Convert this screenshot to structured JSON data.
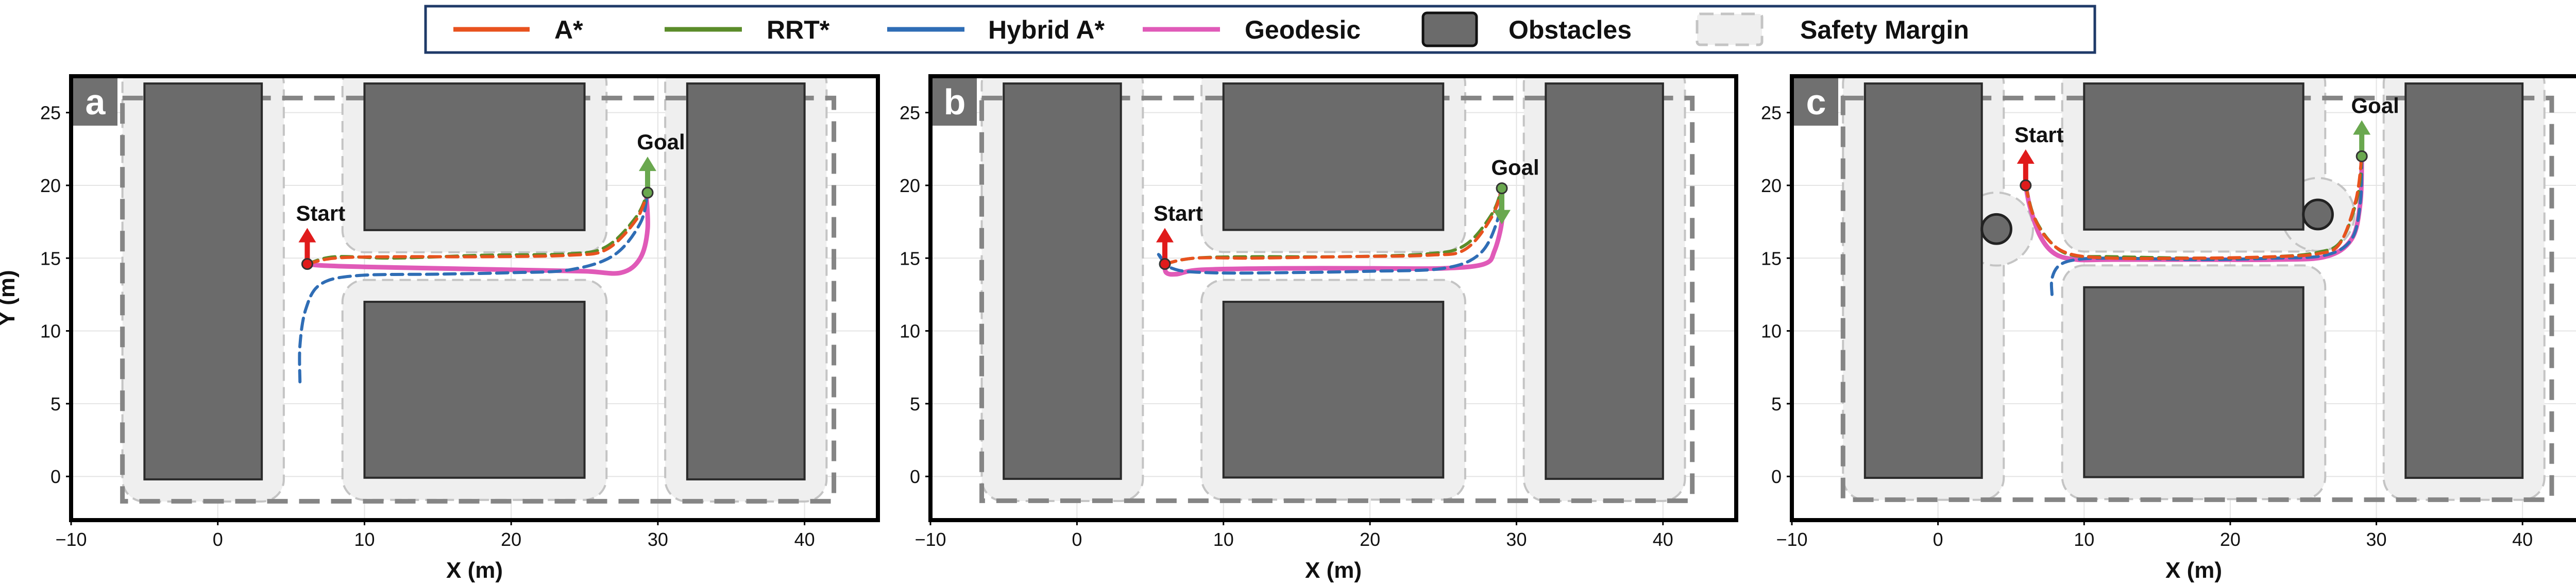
{
  "colors": {
    "astar": "#e8521e",
    "rrt": "#5b8c2a",
    "hybrid": "#2f6db5",
    "geodesic": "#e05ab8",
    "obstacle": "#6b6b6b",
    "margin_fill": "#efefef",
    "margin_line": "#c4c4c4",
    "boundary": "#858585",
    "start": "#e01b1b",
    "goal": "#6aa84f"
  },
  "legend": [
    {
      "label": "A*",
      "key": "astar",
      "kind": "line"
    },
    {
      "label": "RRT*",
      "key": "rrt",
      "kind": "line"
    },
    {
      "label": "Hybrid A*",
      "key": "hybrid",
      "kind": "line"
    },
    {
      "label": "Geodesic",
      "key": "geodesic",
      "kind": "line"
    },
    {
      "label": "Obstacles",
      "key": "obstacle",
      "kind": "box"
    },
    {
      "label": "Safety Margin",
      "key": "margin",
      "kind": "dashedbox"
    }
  ],
  "chart_data": [
    {
      "type": "line",
      "panel": "a",
      "xlabel": "X (m)",
      "ylabel": "Y (m)",
      "xlim": [
        -10,
        45
      ],
      "ylim": [
        -3,
        27.5
      ],
      "xticks": [
        -10,
        0,
        10,
        20,
        30,
        40
      ],
      "yticks": [
        0,
        5,
        10,
        15,
        20,
        25
      ],
      "boundary": {
        "x": [
          -6.5,
          42
        ],
        "y": [
          -1.5,
          26
        ]
      },
      "obstacles": [
        {
          "x": [
            -5,
            3
          ],
          "y": [
            0,
            27
          ]
        },
        {
          "x": [
            10,
            25
          ],
          "y": [
            17,
            27
          ]
        },
        {
          "x": [
            10,
            25
          ],
          "y": [
            0,
            12
          ]
        },
        {
          "x": [
            32,
            40
          ],
          "y": [
            0,
            27
          ]
        }
      ],
      "circle_obstacles": [],
      "start": {
        "label": "Start",
        "x": 6.1,
        "y": 14.6,
        "heading_deg": 90
      },
      "goal": {
        "label": "Goal",
        "x": 29.3,
        "y": 19.5,
        "heading_deg": 90
      },
      "series": [
        {
          "name": "A*",
          "key": "astar",
          "dashed": true,
          "x": [
            6.1,
            8,
            12,
            18,
            24,
            26.5,
            28.5,
            29.3
          ],
          "y": [
            14.6,
            15.0,
            15.1,
            15.1,
            15.2,
            15.6,
            17.6,
            19.5
          ]
        },
        {
          "name": "RRT*",
          "key": "rrt",
          "dashed": true,
          "x": [
            6.1,
            8,
            12,
            18,
            24,
            26.5,
            28.5,
            29.3
          ],
          "y": [
            14.6,
            15.1,
            15.0,
            15.2,
            15.3,
            15.8,
            17.8,
            19.5
          ]
        },
        {
          "name": "Hybrid A*",
          "key": "hybrid",
          "dashed": true,
          "x": [
            5.6,
            5.6,
            6.0,
            7.0,
            9.5,
            15,
            20,
            24,
            27,
            28.8,
            29.3
          ],
          "y": [
            6.5,
            9.0,
            11.5,
            13.2,
            13.8,
            13.9,
            14.0,
            14.2,
            15.2,
            17.4,
            19.5
          ]
        },
        {
          "name": "Geodesic",
          "key": "geodesic",
          "dashed": false,
          "x": [
            6.1,
            7.0,
            10,
            15,
            20,
            25,
            27.5,
            28.8,
            29.3,
            29.2
          ],
          "y": [
            14.6,
            14.5,
            14.4,
            14.3,
            14.2,
            14.1,
            14.0,
            15.0,
            17.0,
            19.5
          ]
        }
      ]
    },
    {
      "type": "line",
      "panel": "b",
      "xlabel": "X (m)",
      "ylabel": "",
      "xlim": [
        -10,
        45
      ],
      "ylim": [
        -3,
        27.5
      ],
      "xticks": [
        -10,
        0,
        10,
        20,
        30,
        40
      ],
      "yticks": [
        0,
        5,
        10,
        15,
        20,
        25
      ],
      "boundary": {
        "x": [
          -6.5,
          42
        ],
        "y": [
          -1.5,
          26
        ]
      },
      "obstacles": [
        {
          "x": [
            -5,
            3
          ],
          "y": [
            0,
            27
          ]
        },
        {
          "x": [
            10,
            25
          ],
          "y": [
            17,
            27
          ]
        },
        {
          "x": [
            10,
            25
          ],
          "y": [
            0,
            12
          ]
        },
        {
          "x": [
            32,
            40
          ],
          "y": [
            0,
            27
          ]
        }
      ],
      "circle_obstacles": [],
      "start": {
        "label": "Start",
        "x": 6.0,
        "y": 14.6,
        "heading_deg": 90
      },
      "goal": {
        "label": "Goal",
        "x": 29.0,
        "y": 19.8,
        "heading_deg": -90
      },
      "series": [
        {
          "name": "A*",
          "key": "astar",
          "dashed": true,
          "x": [
            6.0,
            8,
            12,
            18,
            24,
            26.5,
            28.3,
            29.0
          ],
          "y": [
            14.6,
            15.0,
            15.0,
            15.1,
            15.2,
            15.6,
            17.8,
            19.8
          ]
        },
        {
          "name": "RRT*",
          "key": "rrt",
          "dashed": true,
          "x": [
            6.0,
            8,
            12,
            18,
            24,
            26.5,
            28.3,
            29.0
          ],
          "y": [
            14.6,
            15.0,
            15.1,
            15.1,
            15.3,
            15.9,
            18.0,
            19.8
          ]
        },
        {
          "name": "Hybrid A*",
          "key": "hybrid",
          "dashed": true,
          "x": [
            6.0,
            5.5,
            6.5,
            9,
            14,
            20,
            25,
            27.5,
            28.7,
            29.0
          ],
          "y": [
            14.6,
            15.4,
            14.3,
            14.0,
            14.0,
            14.1,
            14.3,
            15.3,
            17.6,
            19.8
          ]
        },
        {
          "name": "Geodesic",
          "key": "geodesic",
          "dashed": false,
          "x": [
            6.0,
            6.1,
            6.8,
            8.5,
            14,
            20,
            25,
            27.8,
            28.5,
            29.0,
            28.9,
            29.0
          ],
          "y": [
            14.6,
            14.0,
            13.9,
            14.2,
            14.3,
            14.3,
            14.3,
            14.6,
            15.5,
            17.5,
            19.0,
            19.8
          ]
        }
      ]
    },
    {
      "type": "line",
      "panel": "c",
      "xlabel": "X (m)",
      "ylabel": "",
      "xlim": [
        -10,
        45
      ],
      "ylim": [
        -3,
        27.5
      ],
      "xticks": [
        -10,
        0,
        10,
        20,
        30,
        40
      ],
      "yticks": [
        0,
        5,
        10,
        15,
        20,
        25
      ],
      "boundary": {
        "x": [
          -6.5,
          42
        ],
        "y": [
          -1.5,
          26
        ]
      },
      "obstacles": [
        {
          "x": [
            -5,
            3
          ],
          "y": [
            0,
            27
          ]
        },
        {
          "x": [
            10,
            25
          ],
          "y": [
            17,
            27
          ]
        },
        {
          "x": [
            10,
            25
          ],
          "y": [
            0,
            13
          ]
        },
        {
          "x": [
            32,
            40
          ],
          "y": [
            0,
            27
          ]
        }
      ],
      "circle_obstacles": [
        {
          "x": 4.0,
          "y": 17.0,
          "r": 1.0
        },
        {
          "x": 26.0,
          "y": 18.0,
          "r": 1.0
        }
      ],
      "start": {
        "label": "Start",
        "x": 6.0,
        "y": 20.0,
        "heading_deg": 90
      },
      "goal": {
        "label": "Goal",
        "x": 29.0,
        "y": 22.0,
        "heading_deg": 90
      },
      "series": [
        {
          "name": "A*",
          "key": "astar",
          "dashed": true,
          "x": [
            6.0,
            6.5,
            7.5,
            9.0,
            12,
            18,
            23,
            26,
            27.5,
            28.6,
            29.0
          ],
          "y": [
            20.0,
            18.0,
            16.3,
            15.3,
            15.0,
            15.0,
            15.1,
            15.3,
            16.0,
            19.0,
            22.0
          ]
        },
        {
          "name": "RRT*",
          "key": "rrt",
          "dashed": true,
          "x": [
            6.0,
            6.6,
            7.8,
            9.2,
            12,
            18,
            23,
            26,
            27.6,
            28.7,
            29.0
          ],
          "y": [
            20.0,
            17.8,
            16.0,
            15.2,
            15.1,
            15.0,
            15.1,
            15.4,
            16.2,
            19.2,
            22.0
          ]
        },
        {
          "name": "Hybrid A*",
          "key": "hybrid",
          "dashed": true,
          "x": [
            7.8,
            7.8,
            8.3,
            9.5,
            12,
            18,
            23,
            26.5,
            28.3,
            28.9,
            29.0
          ],
          "y": [
            12.5,
            13.6,
            14.5,
            14.9,
            15.0,
            14.9,
            15.0,
            15.2,
            16.3,
            18.8,
            22.0
          ]
        },
        {
          "name": "Geodesic",
          "key": "geodesic",
          "dashed": false,
          "x": [
            6.0,
            6.3,
            7.0,
            8.0,
            9.5,
            12,
            18,
            23,
            26.5,
            28.3,
            28.9,
            29.0
          ],
          "y": [
            20.0,
            18.5,
            16.5,
            15.3,
            14.9,
            14.9,
            14.9,
            14.9,
            15.1,
            16.3,
            18.8,
            22.0
          ]
        }
      ]
    }
  ]
}
